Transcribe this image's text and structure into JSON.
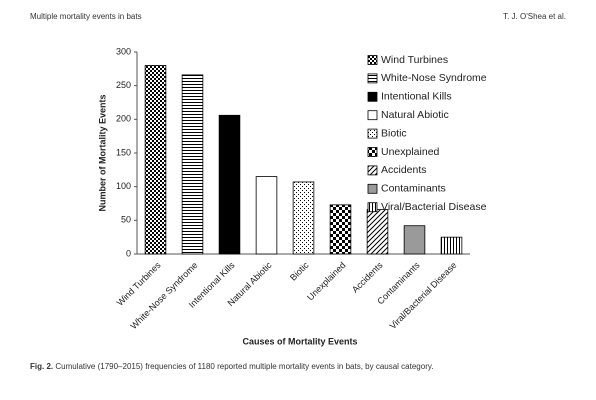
{
  "header": {
    "title": "Multiple mortality events in bats",
    "authors": "T. J. O'Shea et al."
  },
  "caption": {
    "label": "Fig. 2.",
    "text": "Cumulative (1790–2015) frequencies of 1180 reported multiple mortality events in bats, by causal category."
  },
  "chart_data": {
    "type": "bar",
    "x_label": "Causes of Mortality Events",
    "y_label": "Number of Mortality Events",
    "categories": [
      "Wind Turbines",
      "White-Nose Syndrome",
      "Intentional Kills",
      "Natural Abiotic",
      "Biotic",
      "Unexplained",
      "Accidents",
      "Contaminants",
      "Viral/Bacterial Disease"
    ],
    "values": [
      280,
      266,
      206,
      115,
      107,
      73,
      66,
      42,
      25
    ],
    "patterns": [
      "checker",
      "hlines",
      "solid",
      "empty",
      "dots",
      "bigchecker",
      "diag",
      "gray",
      "vlines"
    ],
    "color": "#000000",
    "ylim": [
      0,
      300
    ],
    "yticks": [
      0,
      50,
      100,
      150,
      200,
      250,
      300
    ],
    "legend": "upper right"
  }
}
